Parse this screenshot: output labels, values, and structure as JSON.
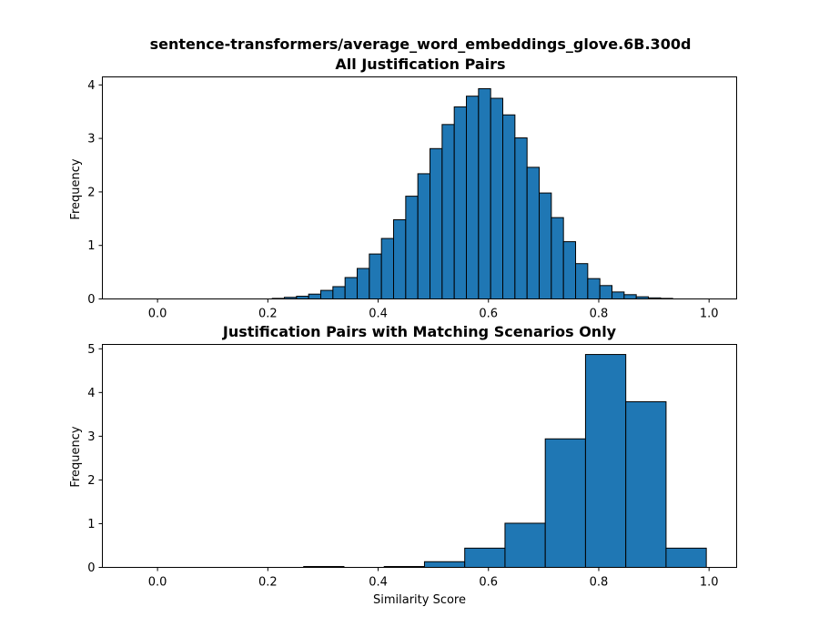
{
  "figure_title": "sentence-transformers/average_word_embeddings_glove.6B.300d",
  "chart_data": [
    {
      "type": "bar",
      "title": "All Justification Pairs",
      "xlabel": "",
      "ylabel": "Frequency",
      "xlim": [
        -0.1,
        1.05
      ],
      "ylim": [
        0,
        4.15
      ],
      "xticks": [
        "0.0",
        "0.2",
        "0.4",
        "0.6",
        "0.8",
        "1.0"
      ],
      "yticks": [
        "0",
        "1",
        "2",
        "3",
        "4"
      ],
      "grid": false,
      "bar_color": "#1f77b4",
      "bin_width": 0.022,
      "bin_starts": [
        -0.1,
        -0.078,
        -0.056,
        -0.034,
        -0.012,
        0.01,
        0.032,
        0.054,
        0.076,
        0.098,
        0.12,
        0.142,
        0.164,
        0.186,
        0.208,
        0.23,
        0.252,
        0.274,
        0.296,
        0.318,
        0.34,
        0.362,
        0.384,
        0.406,
        0.428,
        0.45,
        0.472,
        0.494,
        0.516,
        0.538,
        0.56,
        0.582,
        0.604,
        0.626,
        0.648,
        0.67,
        0.692,
        0.714,
        0.736,
        0.758,
        0.78,
        0.802,
        0.824,
        0.846,
        0.868,
        0.89,
        0.912
      ],
      "values": [
        0,
        0,
        0,
        0,
        0,
        0,
        0,
        0,
        0,
        0,
        0,
        0,
        0,
        0,
        0.01,
        0.03,
        0.05,
        0.09,
        0.16,
        0.23,
        0.4,
        0.57,
        0.84,
        1.13,
        1.48,
        1.92,
        2.34,
        2.81,
        3.26,
        3.59,
        3.79,
        3.93,
        3.75,
        3.44,
        3.01,
        2.46,
        1.98,
        1.52,
        1.07,
        0.66,
        0.38,
        0.25,
        0.13,
        0.08,
        0.04,
        0.02,
        0.01
      ]
    },
    {
      "type": "bar",
      "title": "Justification Pairs with Matching Scenarios Only",
      "xlabel": "Similarity Score",
      "ylabel": "Frequency",
      "xlim": [
        -0.1,
        1.05
      ],
      "ylim": [
        0,
        5.1
      ],
      "xticks": [
        "0.0",
        "0.2",
        "0.4",
        "0.6",
        "0.8",
        "1.0"
      ],
      "yticks": [
        "0",
        "1",
        "2",
        "3",
        "4",
        "5"
      ],
      "grid": false,
      "bar_color": "#1f77b4",
      "bin_width": 0.073,
      "bin_starts": [
        -0.1,
        -0.027,
        0.046,
        0.119,
        0.192,
        0.265,
        0.338,
        0.411,
        0.484,
        0.557,
        0.63,
        0.703,
        0.776,
        0.849,
        0.922
      ],
      "values": [
        0,
        0,
        0,
        0,
        0,
        0.02,
        0,
        0.02,
        0.13,
        0.44,
        1.01,
        2.94,
        4.87,
        3.79,
        0.44
      ]
    }
  ]
}
